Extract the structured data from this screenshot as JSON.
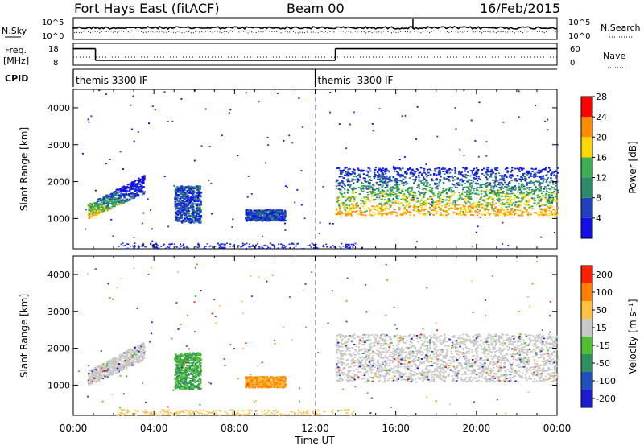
{
  "header": {
    "station": "Fort Hays East (fitACF)",
    "beam": "Beam 00",
    "date": "16/Feb/2015"
  },
  "strips": {
    "nsky_label": "N.Sky",
    "nsearch_label": "N.Search",
    "noise_ticks": [
      "10^5",
      "10^0"
    ],
    "freq_label": "Freq.",
    "freq_units": "[MHz]",
    "freq_ticks": [
      "18",
      "8"
    ],
    "nave_label": "Nave",
    "nave_ticks": [
      "60",
      "0"
    ],
    "cpid_label": "CPID",
    "cpid_segments": [
      {
        "start_hour": 0,
        "end_hour": 12,
        "label": "themis 3300 IF"
      },
      {
        "start_hour": 12,
        "end_hour": 24,
        "label": "themis -3300 IF"
      }
    ],
    "freq_mhz_steps": [
      {
        "start_hour": 0,
        "end_hour": 1.1,
        "value": 16.5
      },
      {
        "start_hour": 1.1,
        "end_hour": 13.0,
        "value": 10.5
      },
      {
        "start_hour": 13.0,
        "end_hour": 24,
        "value": 16.5
      }
    ]
  },
  "chart_data": [
    {
      "type": "heatmap",
      "panel": "power",
      "ylabel": "Slant Range [km]",
      "y_ticks": [
        "1000",
        "2000",
        "3000",
        "4000"
      ],
      "ylim": [
        180,
        4500
      ],
      "xlim": [
        0,
        24
      ],
      "colorbar_label": "Power [dB]",
      "colorbar_ticks": [
        "4",
        "8",
        "12",
        "16",
        "20",
        "24",
        "28"
      ],
      "colorbar_range": [
        0,
        30
      ],
      "colors": [
        "#1010e6",
        "#2040c0",
        "#2c8a6a",
        "#3cb050",
        "#ffd700",
        "#ff8c00",
        "#ff0000"
      ],
      "scatter_regions": [
        {
          "x0": 0.7,
          "x1": 3.5,
          "y0": 1000,
          "y1": 1800,
          "style": "rising-band"
        },
        {
          "x0": 5.0,
          "x1": 6.3,
          "y0": 900,
          "y1": 1900,
          "style": "blob"
        },
        {
          "x0": 8.5,
          "x1": 10.5,
          "y0": 950,
          "y1": 1250,
          "style": "blob"
        },
        {
          "x0": 13.0,
          "x1": 24.0,
          "y0": 1100,
          "y1": 2400,
          "style": "flat-band"
        }
      ]
    },
    {
      "type": "heatmap",
      "panel": "velocity",
      "ylabel": "Slant Range [km]",
      "y_ticks": [
        "1000",
        "2000",
        "3000",
        "4000"
      ],
      "ylim": [
        180,
        4500
      ],
      "xlim": [
        0,
        24
      ],
      "xlabel": "Time UT",
      "x_ticks": [
        "00:00",
        "04:00",
        "08:00",
        "12:00",
        "16:00",
        "20:00",
        "00:00"
      ],
      "colorbar_label": "Velocity [m s⁻¹]",
      "colorbar_ticks": [
        "200",
        "100",
        "50",
        "15",
        "-15",
        "-50",
        "-100",
        "-200"
      ],
      "colors": [
        "#1a1ad0",
        "#2050c0",
        "#2e9060",
        "#50c030",
        "#c8c8c8",
        "#ffc040",
        "#ff8000",
        "#ff2000"
      ],
      "scatter_regions": [
        {
          "x0": 0.7,
          "x1": 3.5,
          "y0": 1000,
          "y1": 1800,
          "style": "rising-band"
        },
        {
          "x0": 5.0,
          "x1": 6.3,
          "y0": 900,
          "y1": 1900,
          "style": "blob"
        },
        {
          "x0": 8.5,
          "x1": 10.5,
          "y0": 950,
          "y1": 1250,
          "style": "blob"
        },
        {
          "x0": 13.0,
          "x1": 24.0,
          "y0": 1100,
          "y1": 2400,
          "style": "flat-band"
        }
      ]
    }
  ]
}
